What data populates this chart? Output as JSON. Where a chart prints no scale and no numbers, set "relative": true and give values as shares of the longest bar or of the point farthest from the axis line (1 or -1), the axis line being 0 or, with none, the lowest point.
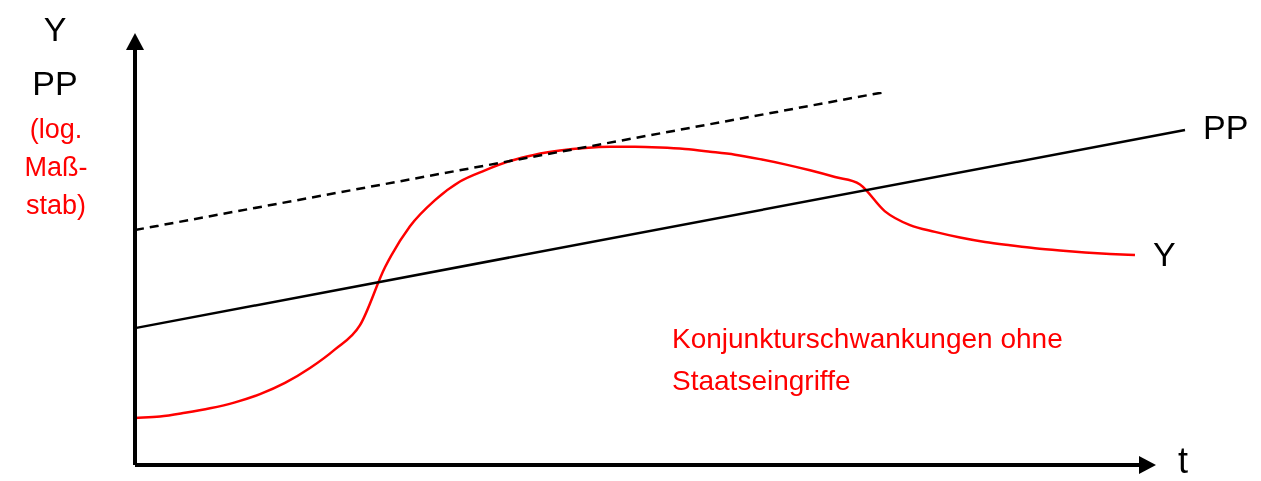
{
  "chart_data": {
    "type": "line",
    "relative": true,
    "ylabel": "Y PP",
    "xlabel": "t",
    "categories": [
      null,
      null,
      null,
      null,
      null,
      null,
      null,
      null,
      null,
      null,
      null,
      null,
      null,
      null,
      null,
      null,
      null,
      null,
      null,
      null,
      null,
      null,
      null,
      null,
      null,
      null,
      null,
      null,
      null,
      null,
      null,
      null,
      null,
      null,
      null,
      null,
      null,
      null,
      null,
      null,
      null,
      null,
      null
    ],
    "series": [
      {
        "name": "PP",
        "color": "#000000",
        "line_style": "solid",
        "values": [
          0.367,
          null,
          null,
          null,
          null,
          null,
          null,
          null,
          null,
          null,
          null,
          null,
          null,
          null,
          null,
          null,
          null,
          null,
          null,
          null,
          null,
          null,
          null,
          null,
          null,
          null,
          null,
          null,
          null,
          null,
          null,
          null,
          null,
          null,
          null,
          null,
          null,
          null,
          null,
          null,
          null,
          null,
          0.898
        ]
      },
      {
        "color": "#000000",
        "line_style": "dashed",
        "values": [
          0.63,
          null,
          null,
          null,
          null,
          null,
          null,
          null,
          null,
          null,
          null,
          null,
          null,
          null,
          null,
          null,
          null,
          null,
          null,
          null,
          null,
          null,
          null,
          null,
          null,
          null,
          null,
          null,
          null,
          null,
          1.0,
          null,
          null,
          null,
          null,
          null,
          null,
          null,
          null,
          null,
          null,
          null,
          null
        ]
      },
      {
        "name": "Y",
        "color": "#ff0000",
        "line_style": "solid",
        "values": [
          0.126,
          0.13,
          0.14,
          0.152,
          0.168,
          0.19,
          0.22,
          0.26,
          0.31,
          0.375,
          0.53,
          0.64,
          0.71,
          0.76,
          0.79,
          0.815,
          0.832,
          0.843,
          0.85,
          0.853,
          0.853,
          0.851,
          0.847,
          0.84,
          0.832,
          0.82,
          0.806,
          0.79,
          0.772,
          0.752,
          0.68,
          0.643,
          0.625,
          0.61,
          0.598,
          0.589,
          0.581,
          0.575,
          0.57,
          0.566,
          0.563,
          null,
          null
        ]
      }
    ],
    "annotations": [
      "(log. Maß-stab)",
      "Konjunkturschwankungen ohne Staatseingriffe"
    ],
    "marker": "none",
    "legend": false
  }
}
